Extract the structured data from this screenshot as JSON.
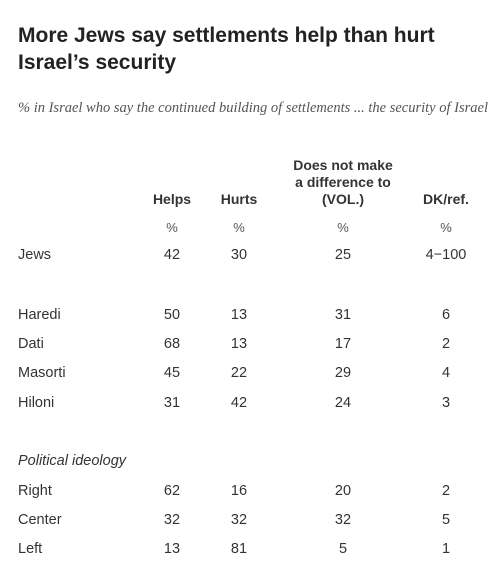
{
  "chart_data": {
    "type": "table",
    "title": "More Jews say settlements help than hurt Israel’s security",
    "subtitle": "% in Israel who say the continued building of settlements ... the security of Israel",
    "columns": [
      "Helps",
      "Hurts",
      "Does not make a difference to (VOL.)",
      "DK/ref."
    ],
    "units": [
      "%",
      "%",
      "%",
      "%"
    ],
    "rows": [
      {
        "label": "Jews",
        "values": [
          "42",
          "30",
          "25",
          "4−100"
        ]
      },
      {
        "label": "Haredi",
        "values": [
          "50",
          "13",
          "31",
          "6"
        ]
      },
      {
        "label": "Dati",
        "values": [
          "68",
          "13",
          "17",
          "2"
        ]
      },
      {
        "label": "Masorti",
        "values": [
          "45",
          "22",
          "29",
          "4"
        ]
      },
      {
        "label": "Hiloni",
        "values": [
          "31",
          "42",
          "24",
          "3"
        ]
      },
      {
        "label": "Right",
        "values": [
          "62",
          "16",
          "20",
          "2"
        ]
      },
      {
        "label": "Center",
        "values": [
          "32",
          "32",
          "32",
          "5"
        ]
      },
      {
        "label": "Left",
        "values": [
          "13",
          "81",
          "5",
          "1"
        ]
      }
    ],
    "section_label": "Political ideology"
  }
}
